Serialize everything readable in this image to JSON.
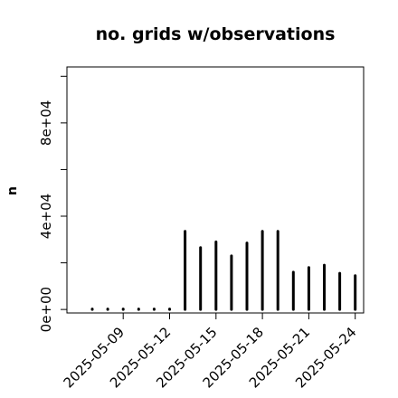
{
  "chart_data": {
    "type": "bar",
    "title": "no. grids w/observations",
    "xlabel": "",
    "ylabel": "n",
    "categories": [
      "2025-05-07",
      "2025-05-08",
      "2025-05-09",
      "2025-05-10",
      "2025-05-11",
      "2025-05-12",
      "2025-05-13",
      "2025-05-14",
      "2025-05-15",
      "2025-05-16",
      "2025-05-17",
      "2025-05-18",
      "2025-05-19",
      "2025-05-20",
      "2025-05-21",
      "2025-05-22",
      "2025-05-23",
      "2025-05-24"
    ],
    "values": [
      0,
      0,
      0,
      0,
      0,
      0,
      33500,
      26500,
      29000,
      23000,
      28500,
      33500,
      33500,
      16000,
      18000,
      19000,
      15500,
      14500
    ],
    "ylim": [
      -1500,
      104000
    ],
    "y_ticks": [
      0,
      40000,
      80000
    ],
    "y_tick_labels": [
      "0e+00",
      "4e+04",
      "8e+04"
    ],
    "x_tick_labels": [
      {
        "category": "2025-05-09",
        "label": "2025-05-09",
        "color": "#000000"
      },
      {
        "category": "2025-05-12",
        "label": "2025-05-12",
        "color": "#000000"
      },
      {
        "category": "2025-05-15",
        "label": "2025-05-15",
        "color": "#228B22"
      },
      {
        "category": "2025-05-18",
        "label": "2025-05-18",
        "color": "#000000"
      },
      {
        "category": "2025-05-21",
        "label": "2025-05-21",
        "color": "#000000"
      },
      {
        "category": "2025-05-24",
        "label": "2025-05-24",
        "color": "#000000"
      }
    ],
    "bar_color": "#000000",
    "grid": false,
    "legend": "none"
  }
}
